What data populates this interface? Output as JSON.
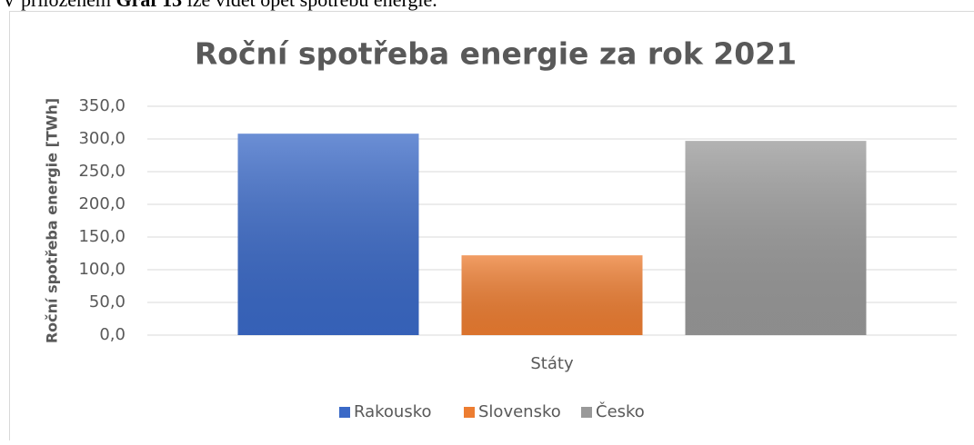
{
  "intro": {
    "before": "V přiloženém ",
    "bold": "Graf 13",
    "after": " lze vidět opět spotřebu energie."
  },
  "chart_data": {
    "type": "bar",
    "title": "Roční spotřeba energie za rok 2021",
    "y_label": "Roční spotřeba energie [TWh]",
    "x_label": "Státy",
    "categories": [
      "Státy"
    ],
    "series": [
      {
        "name": "Rakousko",
        "color": "#3a69c7",
        "values": [
          308
        ]
      },
      {
        "name": "Slovensko",
        "color": "#ed7d31",
        "values": [
          122
        ]
      },
      {
        "name": "Česko",
        "color": "#999999",
        "values": [
          297
        ]
      }
    ],
    "ylim": [
      0,
      350
    ],
    "yticks": [
      {
        "value": 0,
        "label": "0,0"
      },
      {
        "value": 50,
        "label": "50,0"
      },
      {
        "value": 100,
        "label": "100,0"
      },
      {
        "value": 150,
        "label": "150,0"
      },
      {
        "value": 200,
        "label": "200,0"
      },
      {
        "value": 250,
        "label": "250,0"
      },
      {
        "value": 300,
        "label": "300,0"
      },
      {
        "value": 350,
        "label": "350,0"
      }
    ],
    "grid": true,
    "legend": "bottom"
  }
}
